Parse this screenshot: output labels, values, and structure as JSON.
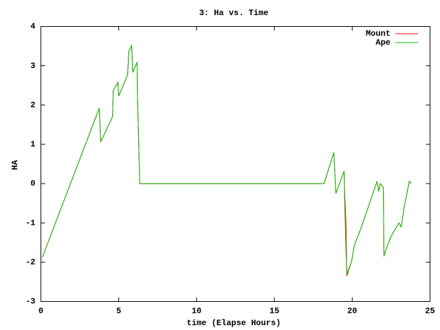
{
  "chart_data": {
    "type": "line",
    "title": "3: Ha vs. Time",
    "x_label": "time (Elapse Hours)",
    "y_label": "HA",
    "x": [
      0.09,
      3.75,
      3.84,
      4.6,
      4.65,
      4.95,
      5.0,
      5.57,
      5.65,
      5.83,
      5.9,
      6.18,
      6.2,
      6.35,
      18.19,
      18.82,
      18.95,
      19.48,
      19.52,
      19.6,
      19.65,
      19.96,
      20.15,
      20.6,
      21.6,
      21.7,
      21.8,
      22.0,
      22.04,
      22.15,
      22.5,
      23.0,
      23.15,
      23.35,
      23.67,
      23.8
    ],
    "series": [
      {
        "name": "Mount",
        "color": "#ff0000",
        "values": [
          -1.88,
          1.92,
          1.06,
          1.7,
          2.37,
          2.58,
          2.23,
          2.77,
          3.37,
          3.51,
          2.83,
          3.09,
          2.3,
          0,
          0,
          0.79,
          -0.25,
          0.32,
          -0.3,
          -1.0,
          -2.35,
          -1.98,
          -1.55,
          -1.1,
          0.06,
          -0.2,
          0.0,
          -0.1,
          -1.85,
          -1.7,
          -1.34,
          -1.0,
          -1.1,
          -0.58,
          0.06,
          0.0
        ]
      },
      {
        "name": "Ape",
        "color": "#00c000",
        "values": [
          -1.88,
          1.92,
          1.06,
          1.7,
          2.37,
          2.58,
          2.23,
          2.77,
          3.37,
          3.51,
          2.83,
          3.09,
          2.3,
          0,
          0,
          0.79,
          -0.25,
          0.32,
          -0.6,
          -1.7,
          -2.3,
          -1.98,
          -1.55,
          -1.1,
          0.06,
          -0.2,
          0.0,
          -0.1,
          -1.85,
          -1.7,
          -1.34,
          -1.0,
          -1.1,
          -0.58,
          0.06,
          0.0
        ]
      }
    ],
    "xlim": [
      0,
      25
    ],
    "xticks": [
      0,
      5,
      10,
      15,
      20,
      25
    ],
    "ylim": [
      -3,
      4
    ],
    "yticks": [
      -3,
      -2,
      -1,
      0,
      1,
      2,
      3,
      4
    ],
    "legend": "top-right"
  }
}
